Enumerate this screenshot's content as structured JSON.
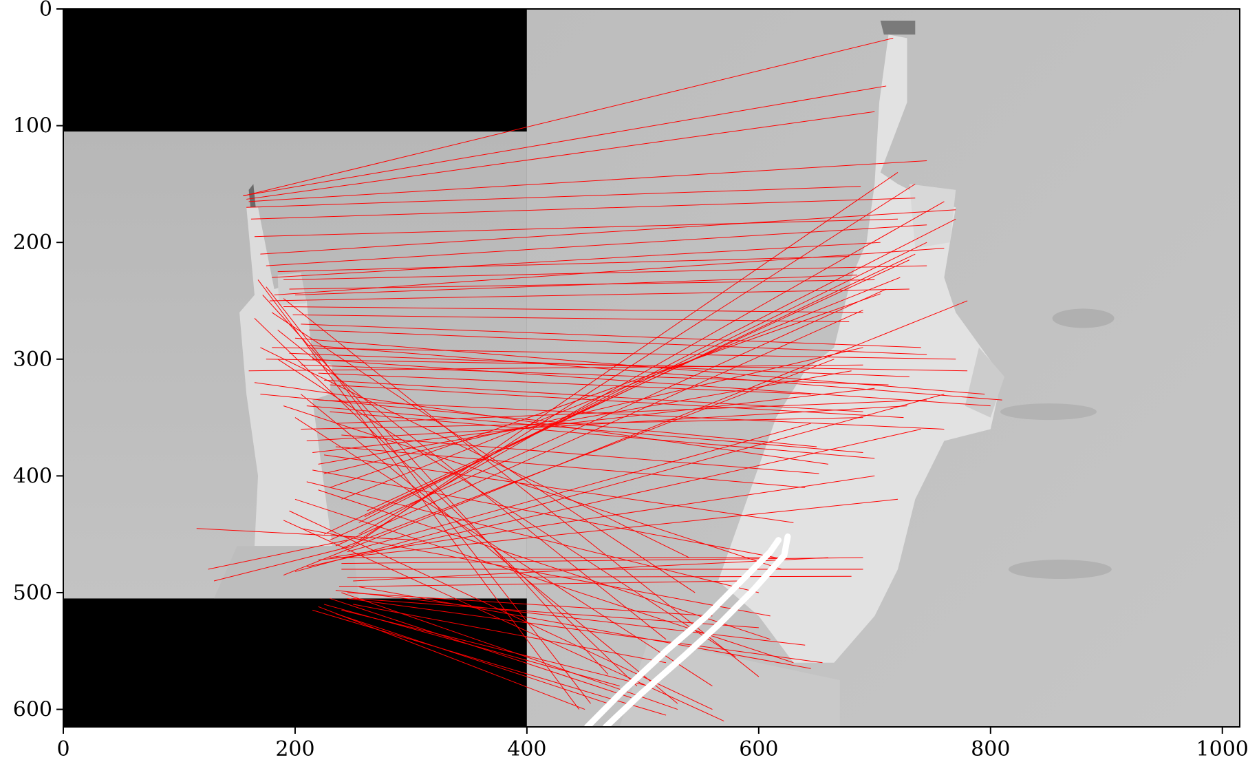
{
  "chart_data": {
    "type": "scatter",
    "title": "",
    "xlabel": "",
    "ylabel": "",
    "xlim": [
      0,
      1015
    ],
    "ylim": [
      615,
      0
    ],
    "y_inverted": true,
    "grid": false,
    "legend": "none",
    "xticks": [
      0,
      200,
      400,
      600,
      800,
      1000
    ],
    "yticks": [
      0,
      100,
      200,
      300,
      400,
      500,
      600
    ],
    "xtick_labels": [
      "0",
      "200",
      "400",
      "600",
      "800",
      "1000"
    ],
    "ytick_labels": [
      "0",
      "100",
      "200",
      "300",
      "400",
      "500",
      "600"
    ],
    "image_panels": [
      {
        "name": "left-image",
        "x": [
          0,
          400
        ],
        "y": [
          0,
          615
        ],
        "content_y": [
          105,
          505
        ],
        "padding_color": "#000000"
      },
      {
        "name": "right-image",
        "x": [
          400,
          1015
        ],
        "y": [
          0,
          615
        ]
      }
    ],
    "match_color": "#ff0000",
    "matches": [
      [
        156,
        160,
        716,
        25
      ],
      [
        155,
        160,
        710,
        66
      ],
      [
        158,
        163,
        700,
        88
      ],
      [
        160,
        165,
        745,
        130
      ],
      [
        158,
        170,
        688,
        152
      ],
      [
        162,
        180,
        735,
        162
      ],
      [
        165,
        195,
        720,
        180
      ],
      [
        170,
        210,
        770,
        172
      ],
      [
        175,
        220,
        745,
        185
      ],
      [
        180,
        230,
        705,
        200
      ],
      [
        185,
        225,
        678,
        212
      ],
      [
        190,
        232,
        745,
        220
      ],
      [
        195,
        240,
        700,
        232
      ],
      [
        200,
        245,
        685,
        228
      ],
      [
        182,
        245,
        760,
        205
      ],
      [
        178,
        250,
        730,
        240
      ],
      [
        190,
        255,
        690,
        260
      ],
      [
        198,
        262,
        678,
        268
      ],
      [
        205,
        270,
        740,
        290
      ],
      [
        212,
        275,
        745,
        296
      ],
      [
        200,
        282,
        795,
        330
      ],
      [
        210,
        288,
        810,
        335
      ],
      [
        195,
        295,
        730,
        315
      ],
      [
        205,
        305,
        712,
        322
      ],
      [
        215,
        300,
        800,
        340
      ],
      [
        220,
        312,
        645,
        330
      ],
      [
        225,
        318,
        690,
        345
      ],
      [
        230,
        322,
        725,
        350
      ],
      [
        220,
        335,
        760,
        360
      ],
      [
        210,
        340,
        690,
        380
      ],
      [
        230,
        345,
        700,
        385
      ],
      [
        235,
        355,
        745,
        335
      ],
      [
        240,
        365,
        652,
        398
      ],
      [
        235,
        375,
        640,
        410
      ],
      [
        225,
        382,
        630,
        440
      ],
      [
        215,
        395,
        615,
        470
      ],
      [
        210,
        405,
        600,
        500
      ],
      [
        220,
        412,
        610,
        540
      ],
      [
        200,
        420,
        630,
        560
      ],
      [
        195,
        430,
        560,
        600
      ],
      [
        190,
        438,
        570,
        610
      ],
      [
        205,
        445,
        610,
        520
      ],
      [
        225,
        450,
        735,
        210
      ],
      [
        230,
        455,
        710,
        240
      ],
      [
        235,
        460,
        690,
        258
      ],
      [
        240,
        462,
        665,
        300
      ],
      [
        245,
        465,
        645,
        355
      ],
      [
        230,
        470,
        700,
        400
      ],
      [
        220,
        472,
        720,
        420
      ],
      [
        210,
        478,
        740,
        360
      ],
      [
        200,
        482,
        760,
        330
      ],
      [
        190,
        485,
        780,
        250
      ],
      [
        235,
        470,
        620,
        470
      ],
      [
        240,
        475,
        690,
        470
      ],
      [
        115,
        445,
        305,
        455
      ],
      [
        130,
        490,
        250,
        460
      ],
      [
        125,
        480,
        245,
        455
      ],
      [
        240,
        480,
        690,
        480
      ],
      [
        245,
        487,
        680,
        486
      ],
      [
        250,
        490,
        660,
        470
      ],
      [
        238,
        495,
        585,
        490
      ],
      [
        235,
        498,
        640,
        545
      ],
      [
        245,
        500,
        560,
        520
      ],
      [
        250,
        505,
        600,
        530
      ],
      [
        255,
        495,
        645,
        565
      ],
      [
        240,
        500,
        530,
        600
      ],
      [
        230,
        505,
        490,
        590
      ],
      [
        225,
        510,
        480,
        580
      ],
      [
        220,
        512,
        450,
        600
      ],
      [
        215,
        515,
        520,
        605
      ],
      [
        245,
        505,
        655,
        560
      ],
      [
        250,
        510,
        520,
        560
      ],
      [
        240,
        515,
        505,
        580
      ],
      [
        235,
        518,
        470,
        595
      ],
      [
        180,
        260,
        545,
        500
      ],
      [
        185,
        300,
        580,
        555
      ],
      [
        190,
        340,
        620,
        480
      ],
      [
        170,
        290,
        540,
        470
      ],
      [
        165,
        265,
        495,
        580
      ],
      [
        185,
        275,
        520,
        540
      ],
      [
        172,
        245,
        470,
        570
      ],
      [
        175,
        238,
        455,
        595
      ],
      [
        168,
        232,
        445,
        600
      ],
      [
        190,
        248,
        600,
        572
      ],
      [
        200,
        350,
        560,
        580
      ],
      [
        205,
        330,
        530,
        595
      ],
      [
        250,
        460,
        720,
        140
      ],
      [
        255,
        455,
        735,
        150
      ],
      [
        255,
        450,
        760,
        165
      ],
      [
        255,
        440,
        770,
        180
      ],
      [
        260,
        435,
        745,
        200
      ],
      [
        262,
        430,
        730,
        215
      ],
      [
        240,
        420,
        722,
        230
      ],
      [
        230,
        410,
        705,
        244
      ],
      [
        225,
        398,
        690,
        290
      ],
      [
        220,
        390,
        680,
        310
      ],
      [
        215,
        380,
        700,
        325
      ],
      [
        210,
        370,
        728,
        340
      ],
      [
        205,
        360,
        690,
        350
      ],
      [
        170,
        330,
        650,
        375
      ],
      [
        165,
        320,
        660,
        390
      ],
      [
        160,
        310,
        690,
        305
      ],
      [
        175,
        300,
        780,
        310
      ],
      [
        180,
        290,
        770,
        300
      ]
    ],
    "highlight_curves": [
      {
        "color": "#ffffff",
        "points": [
          [
            452,
            615
          ],
          [
            482,
            585
          ],
          [
            520,
            550
          ],
          [
            555,
            520
          ],
          [
            585,
            490
          ],
          [
            610,
            465
          ],
          [
            617,
            455
          ]
        ]
      },
      {
        "color": "#ffffff",
        "points": [
          [
            468,
            615
          ],
          [
            498,
            587
          ],
          [
            536,
            554
          ],
          [
            568,
            525
          ],
          [
            596,
            497
          ],
          [
            622,
            468
          ],
          [
            625,
            452
          ]
        ]
      }
    ]
  }
}
